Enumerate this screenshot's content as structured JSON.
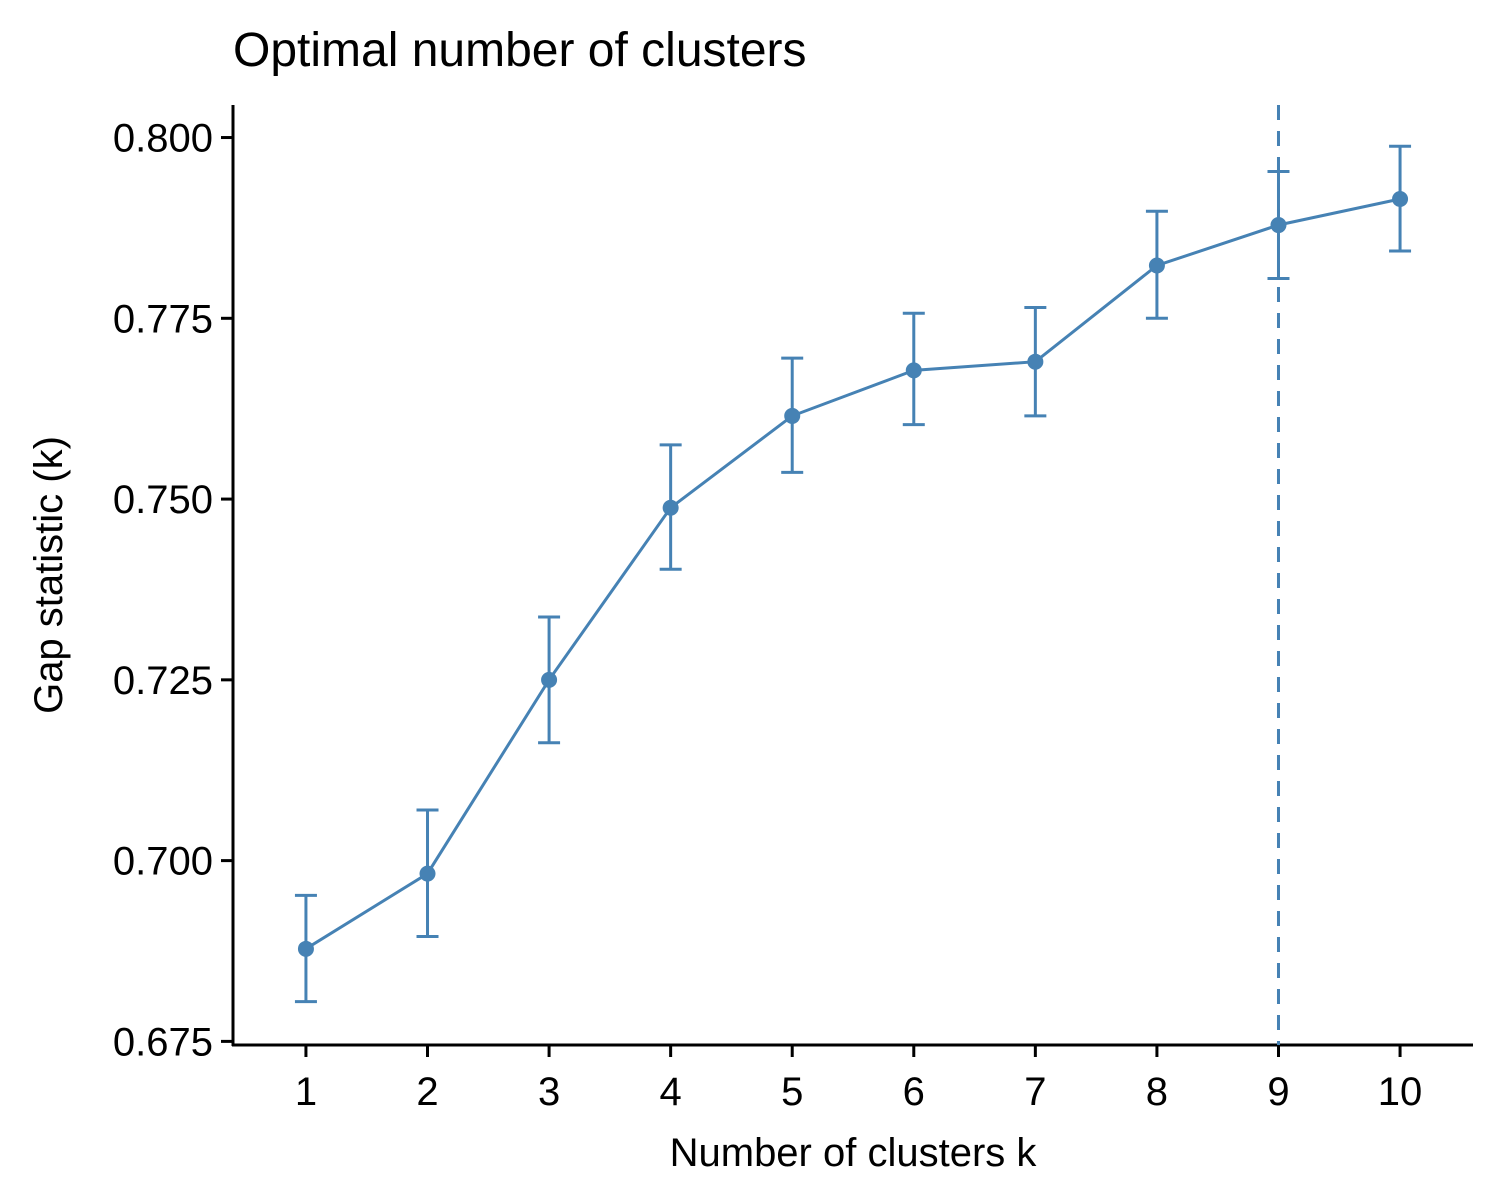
{
  "chart_data": {
    "type": "line",
    "title": "Optimal number of clusters",
    "xlabel": "Number of clusters k",
    "ylabel": "Gap statistic (k)",
    "x": [
      1,
      2,
      3,
      4,
      5,
      6,
      7,
      8,
      9,
      10
    ],
    "x_tick_labels": [
      "1",
      "2",
      "3",
      "4",
      "5",
      "6",
      "7",
      "8",
      "9",
      "10"
    ],
    "y_ticks": [
      0.675,
      0.7,
      0.725,
      0.75,
      0.775,
      0.8
    ],
    "y_tick_labels": [
      "0.675",
      "0.700",
      "0.725",
      "0.750",
      "0.775",
      "0.800"
    ],
    "ylim": [
      0.6745,
      0.8045
    ],
    "xlim": [
      0.4,
      10.6
    ],
    "series": [
      {
        "values": [
          0.6878,
          0.6982,
          0.725,
          0.7488,
          0.7615,
          0.7678,
          0.769,
          0.7823,
          0.7879,
          0.7915
        ],
        "error_low": [
          0.6805,
          0.6895,
          0.7163,
          0.7403,
          0.7537,
          0.7603,
          0.7615,
          0.775,
          0.7805,
          0.7843
        ],
        "error_high": [
          0.6952,
          0.707,
          0.7337,
          0.7575,
          0.7695,
          0.7757,
          0.7765,
          0.7898,
          0.7953,
          0.7988
        ],
        "color": "#4682b4"
      }
    ],
    "optimal_k": 9,
    "vline_style": "dashed",
    "grid": false,
    "legend": "none"
  }
}
